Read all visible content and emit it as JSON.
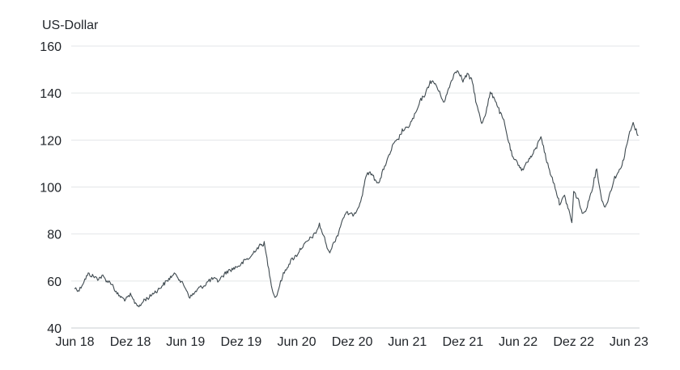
{
  "chart_data": {
    "type": "line",
    "title": "",
    "xlabel": "",
    "ylabel": "US-Dollar",
    "ylim": [
      40,
      160
    ],
    "yticks": [
      40,
      60,
      80,
      100,
      120,
      140,
      160
    ],
    "grid": true,
    "legend": "none",
    "line_color": "#3f4a50",
    "x_ticks": [
      {
        "label": "Jun 18",
        "date": "2018-06-01"
      },
      {
        "label": "Dez 18",
        "date": "2018-12-01"
      },
      {
        "label": "Jun 19",
        "date": "2019-06-01"
      },
      {
        "label": "Dez 19",
        "date": "2019-12-01"
      },
      {
        "label": "Jun 20",
        "date": "2020-06-01"
      },
      {
        "label": "Dez 20",
        "date": "2020-12-01"
      },
      {
        "label": "Jun 21",
        "date": "2021-06-01"
      },
      {
        "label": "Dez 21",
        "date": "2021-12-01"
      },
      {
        "label": "Jun 22",
        "date": "2022-06-01"
      },
      {
        "label": "Dez 22",
        "date": "2022-12-01"
      },
      {
        "label": "Jun 23",
        "date": "2023-06-01"
      }
    ],
    "series": [
      {
        "points": [
          [
            "2018-06-01",
            57
          ],
          [
            "2018-06-15",
            56
          ],
          [
            "2018-07-01",
            60
          ],
          [
            "2018-07-15",
            63
          ],
          [
            "2018-08-01",
            62
          ],
          [
            "2018-08-15",
            61
          ],
          [
            "2018-09-01",
            62
          ],
          [
            "2018-09-15",
            60
          ],
          [
            "2018-10-01",
            59
          ],
          [
            "2018-10-15",
            55
          ],
          [
            "2018-11-01",
            53
          ],
          [
            "2018-11-15",
            52
          ],
          [
            "2018-12-01",
            54
          ],
          [
            "2018-12-15",
            51
          ],
          [
            "2019-01-01",
            49
          ],
          [
            "2019-01-15",
            52
          ],
          [
            "2019-02-01",
            53
          ],
          [
            "2019-02-15",
            55
          ],
          [
            "2019-03-01",
            56
          ],
          [
            "2019-03-15",
            58
          ],
          [
            "2019-04-01",
            60
          ],
          [
            "2019-04-15",
            62
          ],
          [
            "2019-05-01",
            63
          ],
          [
            "2019-05-15",
            60
          ],
          [
            "2019-06-01",
            57
          ],
          [
            "2019-06-15",
            53
          ],
          [
            "2019-07-01",
            55
          ],
          [
            "2019-07-15",
            57
          ],
          [
            "2019-08-01",
            58
          ],
          [
            "2019-08-15",
            60
          ],
          [
            "2019-09-01",
            61
          ],
          [
            "2019-09-15",
            60
          ],
          [
            "2019-10-01",
            62
          ],
          [
            "2019-10-15",
            64
          ],
          [
            "2019-11-01",
            65
          ],
          [
            "2019-11-15",
            66
          ],
          [
            "2019-12-01",
            67
          ],
          [
            "2019-12-15",
            69
          ],
          [
            "2020-01-01",
            70
          ],
          [
            "2020-01-15",
            73
          ],
          [
            "2020-02-01",
            75
          ],
          [
            "2020-02-15",
            76
          ],
          [
            "2020-03-01",
            65
          ],
          [
            "2020-03-15",
            55
          ],
          [
            "2020-03-25",
            53
          ],
          [
            "2020-04-15",
            62
          ],
          [
            "2020-05-01",
            66
          ],
          [
            "2020-05-15",
            69
          ],
          [
            "2020-06-01",
            71
          ],
          [
            "2020-06-15",
            74
          ],
          [
            "2020-07-01",
            76
          ],
          [
            "2020-07-15",
            78
          ],
          [
            "2020-08-01",
            80
          ],
          [
            "2020-08-15",
            84
          ],
          [
            "2020-09-01",
            78
          ],
          [
            "2020-09-15",
            72
          ],
          [
            "2020-10-01",
            76
          ],
          [
            "2020-10-15",
            80
          ],
          [
            "2020-11-01",
            87
          ],
          [
            "2020-11-15",
            89
          ],
          [
            "2020-12-01",
            88
          ],
          [
            "2020-12-15",
            90
          ],
          [
            "2021-01-01",
            95
          ],
          [
            "2021-01-15",
            105
          ],
          [
            "2021-02-01",
            106
          ],
          [
            "2021-02-15",
            103
          ],
          [
            "2021-03-01",
            102
          ],
          [
            "2021-03-15",
            108
          ],
          [
            "2021-04-01",
            113
          ],
          [
            "2021-04-15",
            118
          ],
          [
            "2021-05-01",
            120
          ],
          [
            "2021-05-15",
            124
          ],
          [
            "2021-06-01",
            125
          ],
          [
            "2021-06-15",
            128
          ],
          [
            "2021-07-01",
            132
          ],
          [
            "2021-07-15",
            137
          ],
          [
            "2021-08-01",
            140
          ],
          [
            "2021-08-15",
            145
          ],
          [
            "2021-09-01",
            144
          ],
          [
            "2021-09-15",
            140
          ],
          [
            "2021-10-01",
            136
          ],
          [
            "2021-10-15",
            142
          ],
          [
            "2021-11-01",
            148
          ],
          [
            "2021-11-15",
            150
          ],
          [
            "2021-12-01",
            145
          ],
          [
            "2021-12-15",
            148
          ],
          [
            "2022-01-01",
            145
          ],
          [
            "2022-01-15",
            135
          ],
          [
            "2022-02-01",
            127
          ],
          [
            "2022-02-15",
            132
          ],
          [
            "2022-03-01",
            140
          ],
          [
            "2022-03-15",
            138
          ],
          [
            "2022-04-01",
            132
          ],
          [
            "2022-04-15",
            128
          ],
          [
            "2022-05-01",
            119
          ],
          [
            "2022-05-15",
            112
          ],
          [
            "2022-06-01",
            110
          ],
          [
            "2022-06-15",
            107
          ],
          [
            "2022-07-01",
            111
          ],
          [
            "2022-07-15",
            113
          ],
          [
            "2022-08-01",
            117
          ],
          [
            "2022-08-15",
            122
          ],
          [
            "2022-09-01",
            112
          ],
          [
            "2022-09-15",
            106
          ],
          [
            "2022-10-01",
            100
          ],
          [
            "2022-10-15",
            93
          ],
          [
            "2022-11-01",
            96
          ],
          [
            "2022-11-15",
            90
          ],
          [
            "2022-11-25",
            85
          ],
          [
            "2022-12-01",
            98
          ],
          [
            "2022-12-15",
            95
          ],
          [
            "2023-01-01",
            88
          ],
          [
            "2023-01-15",
            92
          ],
          [
            "2023-02-01",
            100
          ],
          [
            "2023-02-15",
            108
          ],
          [
            "2023-03-01",
            96
          ],
          [
            "2023-03-15",
            91
          ],
          [
            "2023-04-01",
            98
          ],
          [
            "2023-04-15",
            104
          ],
          [
            "2023-05-01",
            107
          ],
          [
            "2023-05-15",
            112
          ],
          [
            "2023-06-01",
            122
          ],
          [
            "2023-06-15",
            127
          ],
          [
            "2023-06-25",
            124
          ],
          [
            "2023-07-01",
            122
          ]
        ]
      }
    ]
  }
}
